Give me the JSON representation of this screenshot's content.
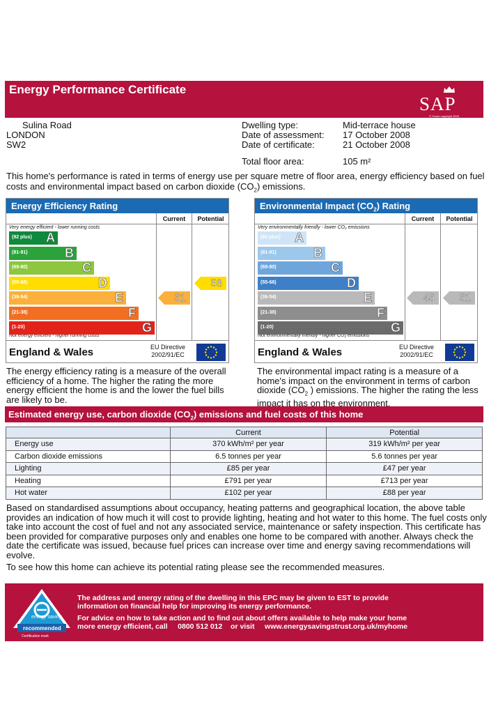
{
  "header": {
    "title": "Energy Performance Certificate",
    "logo_text": "SAP",
    "logo_copyright": "© Crown copyright 2005"
  },
  "address": {
    "line1": "Sulina Road",
    "line2": "LONDON",
    "line3": "SW2"
  },
  "property": {
    "dwelling_type_label": "Dwelling type:",
    "dwelling_type": "Mid-terrace house",
    "assessment_label": "Date of assessment:",
    "assessment_date": "17 October 2008",
    "certificate_label": "Date of certificate:",
    "certificate_date": "21 October 2008",
    "floor_area_label": "Total floor area:",
    "floor_area": "105 m²"
  },
  "intro": {
    "text_before": "This home's performance is rated in terms of energy use per square metre of floor area, energy efficiency based on fuel costs and environmental impact based on carbon dioxide (CO",
    "sub": "2",
    "text_after": ") emissions."
  },
  "efficiency": {
    "title": "Energy Efficiency Rating",
    "current_label": "Current",
    "potential_label": "Potential",
    "top_caption": "Very energy efficient - lower running costs",
    "bottom_caption": "Not energy efficient - higher running costs",
    "bands": [
      {
        "range": "(92 plus)",
        "letter": "A",
        "color": "#0f8a3c"
      },
      {
        "range": "(81-91)",
        "letter": "B",
        "color": "#2aa33a"
      },
      {
        "range": "(69-80)",
        "letter": "C",
        "color": "#8dc63f"
      },
      {
        "range": "(55-68)",
        "letter": "D",
        "color": "#ffdd00"
      },
      {
        "range": "(39-54)",
        "letter": "E",
        "color": "#fbb03b"
      },
      {
        "range": "(21-38)",
        "letter": "F",
        "color": "#f26f22"
      },
      {
        "range": "(1-20)",
        "letter": "G",
        "color": "#e2231a"
      }
    ],
    "current": "51",
    "current_color": "#fbb03b",
    "potential": "58",
    "potential_color": "#ffdd00",
    "region": "England & Wales",
    "directive_line1": "EU Directive",
    "directive_line2": "2002/91/EC"
  },
  "environmental": {
    "title_before": "Environmental Impact (CO",
    "title_sub": "2",
    "title_after": ") Rating",
    "current_label": "Current",
    "potential_label": "Potential",
    "top_caption": "Very environmentally friendly - lower CO₂ emissions",
    "bottom_caption": "Not environmentally friendly - higher CO₂ emissions",
    "bands": [
      {
        "range": "(92 plus)",
        "letter": "A",
        "color": "#cfe4f6"
      },
      {
        "range": "(81-91)",
        "letter": "B",
        "color": "#9cc8ec"
      },
      {
        "range": "(69-80)",
        "letter": "C",
        "color": "#6ea6dc"
      },
      {
        "range": "(55-68)",
        "letter": "D",
        "color": "#3f7fc8"
      },
      {
        "range": "(39-54)",
        "letter": "E",
        "color": "#b9b9b9"
      },
      {
        "range": "(21-38)",
        "letter": "F",
        "color": "#8e8e8e"
      },
      {
        "range": "(1-20)",
        "letter": "G",
        "color": "#6b6b6b"
      }
    ],
    "current": "45",
    "current_color": "#b9b9b9",
    "potential": "51",
    "potential_color": "#b9b9b9",
    "region": "England & Wales",
    "directive_line1": "EU Directive",
    "directive_line2": "2002/91/EC"
  },
  "desc_left": "The energy efficiency rating is a measure of the overall efficiency of a home. The higher the rating the more energy efficient the home is and the lower the fuel bills are likely to be.",
  "desc_right": {
    "before": "The environmental impact rating is a measure of a home's impact on the environment in terms of carbon dioxide (CO",
    "sub": "2",
    "after": "  ) emissions. The higher the rating the less impact it has on the environment."
  },
  "estimate": {
    "title_before": "Estimated energy use, carbon dioxide (CO",
    "title_sub": "2",
    "title_after": ") emissions and fuel costs of this home",
    "header": [
      "",
      "Current",
      "Potential"
    ],
    "rows": [
      [
        "Energy use",
        "370 kWh/m² per year",
        "319 kWh/m² per year"
      ],
      [
        "Carbon dioxide emissions",
        "6.5 tonnes per year",
        "5.6 tonnes per year"
      ],
      [
        "Lighting",
        "£85 per year",
        "£47 per year"
      ],
      [
        "Heating",
        "£791 per year",
        "£713 per year"
      ],
      [
        "Hot water",
        "£102 per year",
        "£88 per year"
      ]
    ]
  },
  "para1": "Based on standardised assumptions about occupancy, heating patterns and geographical location, the above table provides an indication of how much it will cost to provide lighting, heating and hot water to this home. The fuel costs only take into account the cost of fuel and not any associated service, maintenance or safety inspection.  This certificate has been provided for comparative purposes only and enables one home to be compared with another.  Always check the date the certificate was issued, because fuel prices can increase over time and energy saving recommendations will evolve.",
  "para2": "To see how this home can achieve its potential rating please see the recommended measures.",
  "footer": {
    "line1": "The address and energy rating of the dwelling in this EPC may be given to EST to provide",
    "line2": "information on financial help for improving its energy performance.",
    "line3": "For advice on how to take action and to find out about offers available to help make your home",
    "line4": "more energy efficient, call     0800 512 012    or visit     www.energysavingstrust.org.uk/myhome",
    "logo_text1": "energy saving",
    "logo_text2": "recommended",
    "cert_mark": "Certification mark"
  }
}
